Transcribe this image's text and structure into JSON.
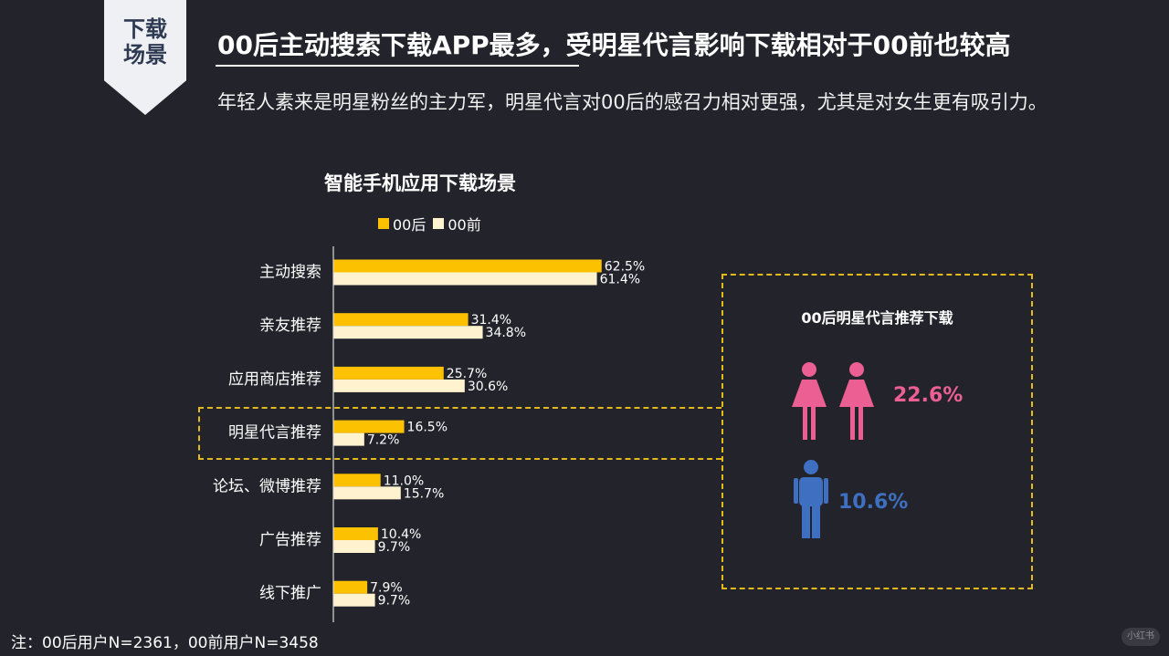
{
  "section_tag": [
    "下载",
    "场景"
  ],
  "headline": "00后主动搜索下载APP最多，受明星代言影响下载相对于00前也较高",
  "subtitle": "年轻人素来是明星粉丝的主力军，明星代言对00后的感召力相对更强，尤其是对女生更有吸引力。",
  "chart_data": {
    "type": "bar",
    "orientation": "horizontal",
    "title": "智能手机应用下载场景",
    "categories": [
      "主动搜索",
      "亲友推荐",
      "应用商店推荐",
      "明星代言推荐",
      "论坛、微博推荐",
      "广告推荐",
      "线下推广"
    ],
    "series": [
      {
        "name": "00后",
        "color": "#fcc100",
        "values": [
          62.5,
          31.4,
          25.7,
          16.5,
          11.0,
          10.4,
          7.9
        ],
        "labels": [
          "62.5%",
          "31.4%",
          "25.7%",
          "16.5%",
          "11.0%",
          "10.4%",
          "7.9%"
        ]
      },
      {
        "name": "00前",
        "color": "#fff3cf",
        "values": [
          61.4,
          34.8,
          30.6,
          7.2,
          15.7,
          9.7,
          9.7
        ],
        "labels": [
          "61.4%",
          "34.8%",
          "30.6%",
          "7.2%",
          "15.7%",
          "9.7%",
          "9.7%"
        ]
      }
    ],
    "highlighted_category": "明星代言推荐",
    "legend": "top"
  },
  "panel": {
    "title": "00后明星代言推荐下载",
    "female": {
      "value": "22.6%",
      "icon": "female-figure-icon",
      "color": "#ec5f92"
    },
    "male": {
      "value": "10.6%",
      "icon": "male-figure-icon",
      "color": "#3f6fc0"
    }
  },
  "footnote": "注：00后用户N=2361，00前用户N=3458",
  "watermark": "小红书",
  "colors": {
    "background": "#23232b",
    "accent": "#e3b91c"
  }
}
